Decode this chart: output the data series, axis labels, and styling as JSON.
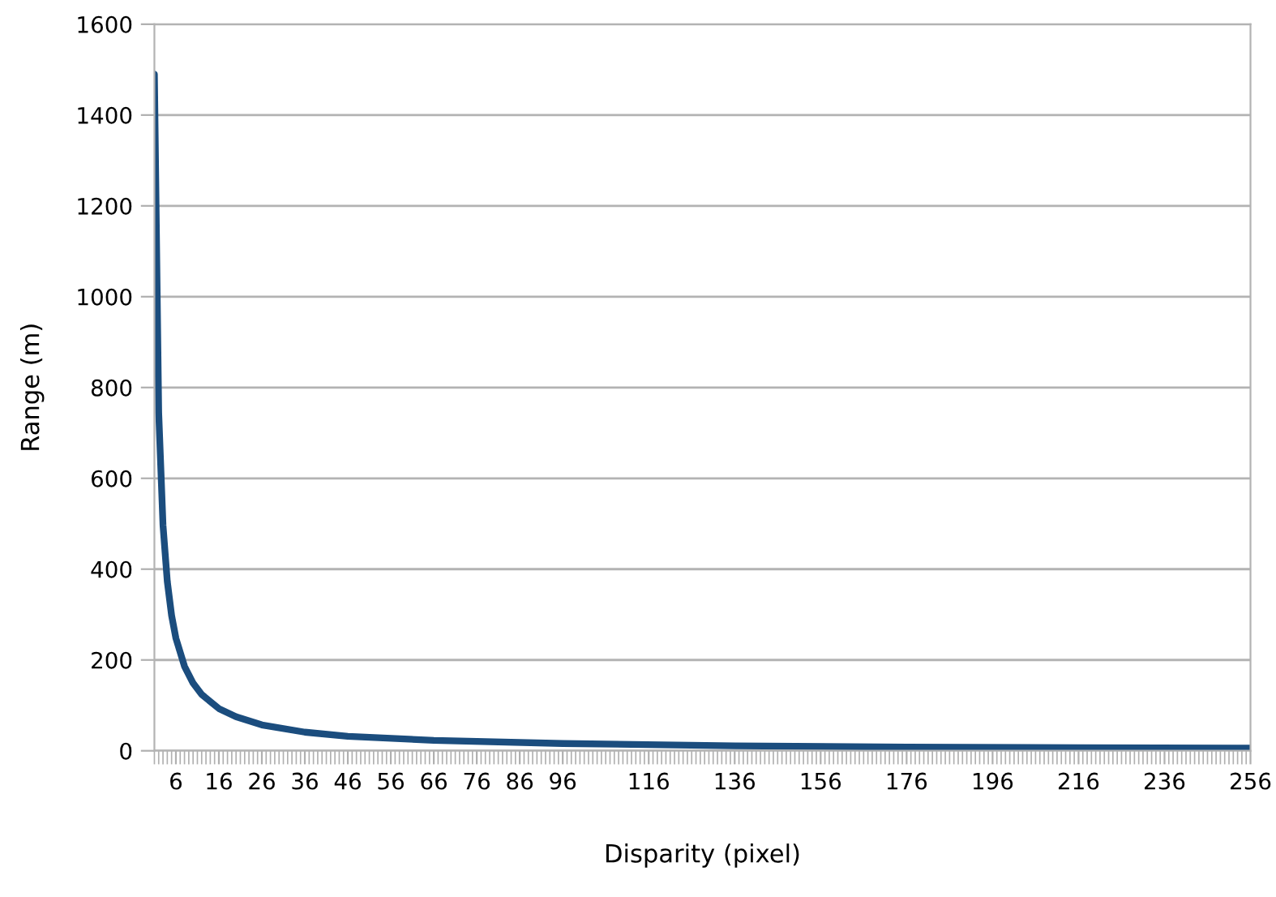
{
  "chart_data": {
    "type": "line",
    "xlabel": "Disparity (pixel)",
    "ylabel": "Range (m)",
    "x": [
      1,
      2,
      3,
      4,
      5,
      6,
      8,
      10,
      12,
      16,
      20,
      26,
      36,
      46,
      66,
      96,
      136,
      176,
      216,
      256
    ],
    "series": [
      {
        "color": "#1b4d7e",
        "values": [
          1490,
          745,
          497,
          373,
          298,
          248,
          186,
          149,
          124,
          93,
          75,
          57,
          41,
          32,
          23,
          16,
          11,
          8,
          7,
          6
        ]
      }
    ],
    "xlim": [
      1,
      256
    ],
    "xticks": [
      6,
      16,
      26,
      36,
      46,
      56,
      66,
      76,
      86,
      96,
      116,
      136,
      156,
      176,
      196,
      216,
      236,
      256
    ],
    "ylim": [
      0,
      1600
    ],
    "yticks": [
      0,
      200,
      400,
      600,
      800,
      1000,
      1200,
      1400,
      1600
    ],
    "grid": "y",
    "legend": false,
    "marker": "none",
    "line_style": "solid"
  }
}
